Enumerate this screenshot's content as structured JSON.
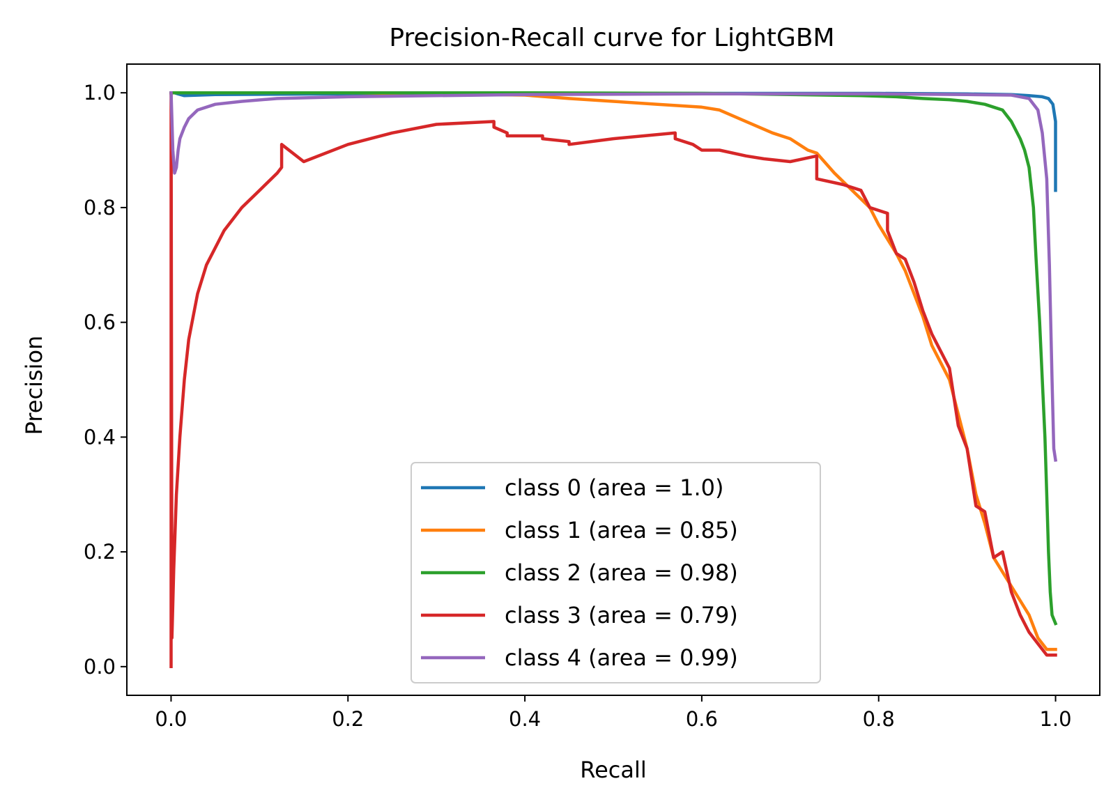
{
  "chart_data": {
    "type": "line",
    "title": "Precision-Recall curve for LightGBM",
    "xlabel": "Recall",
    "ylabel": "Precision",
    "xlim": [
      -0.05,
      1.05
    ],
    "ylim": [
      -0.05,
      1.05
    ],
    "xticks": [
      0.0,
      0.2,
      0.4,
      0.6,
      0.8,
      1.0
    ],
    "yticks": [
      0.0,
      0.2,
      0.4,
      0.6,
      0.8,
      1.0
    ],
    "xtick_labels": [
      "0.0",
      "0.2",
      "0.4",
      "0.6",
      "0.8",
      "1.0"
    ],
    "ytick_labels": [
      "0.0",
      "0.2",
      "0.4",
      "0.6",
      "0.8",
      "1.0"
    ],
    "grid": false,
    "legend_position": "lower center",
    "series": [
      {
        "name": "class 0 (area = 1.0)",
        "color": "#1f77b4",
        "x": [
          0.0,
          0.004,
          0.008,
          0.015,
          0.05,
          0.2,
          0.4,
          0.6,
          0.8,
          0.9,
          0.95,
          0.97,
          0.985,
          0.992,
          0.997,
          1.0,
          1.0,
          1.0
        ],
        "y": [
          1.0,
          1.0,
          0.998,
          0.995,
          0.997,
          0.998,
          0.999,
          0.999,
          0.999,
          0.998,
          0.997,
          0.995,
          0.993,
          0.99,
          0.98,
          0.95,
          0.88,
          0.83
        ]
      },
      {
        "name": "class 1 (area = 0.85)",
        "color": "#ff7f0e",
        "x": [
          0.0,
          0.1,
          0.2,
          0.3,
          0.4,
          0.45,
          0.5,
          0.55,
          0.6,
          0.62,
          0.65,
          0.68,
          0.7,
          0.72,
          0.73,
          0.75,
          0.77,
          0.79,
          0.8,
          0.82,
          0.83,
          0.85,
          0.86,
          0.87,
          0.88,
          0.89,
          0.9,
          0.91,
          0.92,
          0.93,
          0.95,
          0.97,
          0.98,
          0.99,
          1.0
        ],
        "y": [
          1.0,
          1.0,
          1.0,
          0.998,
          0.996,
          0.99,
          0.985,
          0.98,
          0.975,
          0.97,
          0.95,
          0.93,
          0.92,
          0.9,
          0.895,
          0.86,
          0.83,
          0.8,
          0.77,
          0.72,
          0.69,
          0.61,
          0.56,
          0.53,
          0.5,
          0.44,
          0.38,
          0.3,
          0.25,
          0.19,
          0.14,
          0.09,
          0.05,
          0.03,
          0.03
        ]
      },
      {
        "name": "class 2 (area = 0.98)",
        "color": "#2ca02c",
        "x": [
          0.0,
          0.01,
          0.2,
          0.4,
          0.6,
          0.7,
          0.78,
          0.82,
          0.85,
          0.88,
          0.9,
          0.92,
          0.93,
          0.94,
          0.95,
          0.96,
          0.965,
          0.97,
          0.975,
          0.978,
          0.982,
          0.985,
          0.988,
          0.99,
          0.992,
          0.994,
          0.996,
          1.0
        ],
        "y": [
          1.0,
          1.0,
          1.0,
          1.0,
          0.999,
          0.997,
          0.995,
          0.993,
          0.99,
          0.988,
          0.985,
          0.98,
          0.975,
          0.97,
          0.95,
          0.92,
          0.9,
          0.87,
          0.8,
          0.71,
          0.6,
          0.5,
          0.4,
          0.3,
          0.2,
          0.13,
          0.09,
          0.075
        ]
      },
      {
        "name": "class 3 (area = 0.79)",
        "color": "#d62728",
        "x": [
          0.0,
          0.0,
          0.001,
          0.003,
          0.006,
          0.01,
          0.015,
          0.02,
          0.03,
          0.04,
          0.06,
          0.08,
          0.1,
          0.12,
          0.125,
          0.125,
          0.15,
          0.2,
          0.25,
          0.3,
          0.365,
          0.365,
          0.38,
          0.38,
          0.42,
          0.42,
          0.45,
          0.45,
          0.5,
          0.57,
          0.57,
          0.59,
          0.6,
          0.62,
          0.65,
          0.67,
          0.7,
          0.73,
          0.73,
          0.76,
          0.78,
          0.79,
          0.81,
          0.81,
          0.82,
          0.83,
          0.84,
          0.85,
          0.86,
          0.87,
          0.88,
          0.89,
          0.9,
          0.91,
          0.92,
          0.93,
          0.94,
          0.95,
          0.96,
          0.97,
          0.98,
          0.99,
          1.0
        ],
        "y": [
          0.0,
          1.0,
          0.05,
          0.17,
          0.3,
          0.4,
          0.5,
          0.57,
          0.65,
          0.7,
          0.76,
          0.8,
          0.83,
          0.86,
          0.87,
          0.91,
          0.88,
          0.91,
          0.93,
          0.945,
          0.95,
          0.94,
          0.93,
          0.925,
          0.925,
          0.92,
          0.915,
          0.91,
          0.92,
          0.93,
          0.92,
          0.91,
          0.9,
          0.9,
          0.89,
          0.885,
          0.88,
          0.89,
          0.85,
          0.84,
          0.83,
          0.8,
          0.79,
          0.76,
          0.72,
          0.71,
          0.67,
          0.62,
          0.58,
          0.55,
          0.52,
          0.42,
          0.38,
          0.28,
          0.27,
          0.19,
          0.2,
          0.13,
          0.09,
          0.06,
          0.04,
          0.02,
          0.02
        ]
      },
      {
        "name": "class 4 (area = 0.99)",
        "color": "#9467bd",
        "x": [
          0.0,
          0.002,
          0.004,
          0.006,
          0.008,
          0.01,
          0.015,
          0.02,
          0.03,
          0.05,
          0.08,
          0.12,
          0.2,
          0.3,
          0.4,
          0.6,
          0.8,
          0.9,
          0.95,
          0.97,
          0.98,
          0.985,
          0.99,
          0.993,
          0.996,
          0.998,
          1.0
        ],
        "y": [
          1.0,
          0.9,
          0.86,
          0.87,
          0.9,
          0.92,
          0.94,
          0.955,
          0.97,
          0.98,
          0.985,
          0.99,
          0.993,
          0.995,
          0.997,
          0.998,
          0.998,
          0.997,
          0.996,
          0.99,
          0.97,
          0.93,
          0.85,
          0.7,
          0.5,
          0.38,
          0.36
        ]
      }
    ]
  }
}
